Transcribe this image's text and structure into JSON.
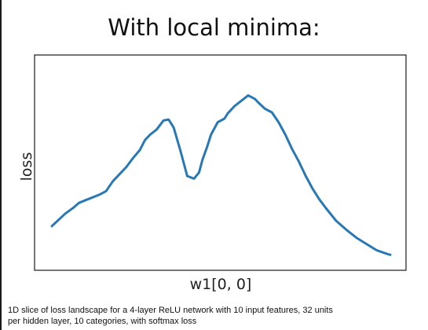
{
  "slide": {
    "title": "With local minima:",
    "caption_line1": "1D slice of loss landscape for a 4-layer ReLU network with 10 input features, 32 units",
    "caption_line2": "per hidden layer, 10 categories, with softmax loss"
  },
  "colors": {
    "line": "#2878b5",
    "frame": "#1a1a1a"
  },
  "chart_data": {
    "type": "line",
    "xlabel": "w1[0, 0]",
    "ylabel": "loss",
    "grid": false,
    "xlim": [
      0,
      1
    ],
    "ylim": [
      0,
      1
    ],
    "series": [
      {
        "x": [
          0.0,
          0.02,
          0.04,
          0.065,
          0.08,
          0.1,
          0.12,
          0.14,
          0.16,
          0.18,
          0.2,
          0.22,
          0.24,
          0.26,
          0.275,
          0.29,
          0.31,
          0.33,
          0.345,
          0.36,
          0.38,
          0.4,
          0.42,
          0.435,
          0.445,
          0.46,
          0.47,
          0.49,
          0.51,
          0.52,
          0.54,
          0.56,
          0.58,
          0.6,
          0.61,
          0.63,
          0.65,
          0.67,
          0.69,
          0.71,
          0.73,
          0.75,
          0.77,
          0.79,
          0.81,
          0.84,
          0.87,
          0.9,
          0.93,
          0.96,
          0.99,
          1.0
        ],
        "y": [
          0.15,
          0.185,
          0.22,
          0.255,
          0.28,
          0.295,
          0.31,
          0.325,
          0.345,
          0.4,
          0.44,
          0.48,
          0.53,
          0.575,
          0.63,
          0.66,
          0.69,
          0.74,
          0.745,
          0.7,
          0.57,
          0.43,
          0.415,
          0.45,
          0.52,
          0.6,
          0.66,
          0.73,
          0.75,
          0.78,
          0.82,
          0.85,
          0.88,
          0.86,
          0.84,
          0.805,
          0.785,
          0.73,
          0.66,
          0.58,
          0.51,
          0.43,
          0.36,
          0.3,
          0.25,
          0.18,
          0.13,
          0.085,
          0.05,
          0.015,
          -0.005,
          -0.01
        ]
      }
    ]
  }
}
